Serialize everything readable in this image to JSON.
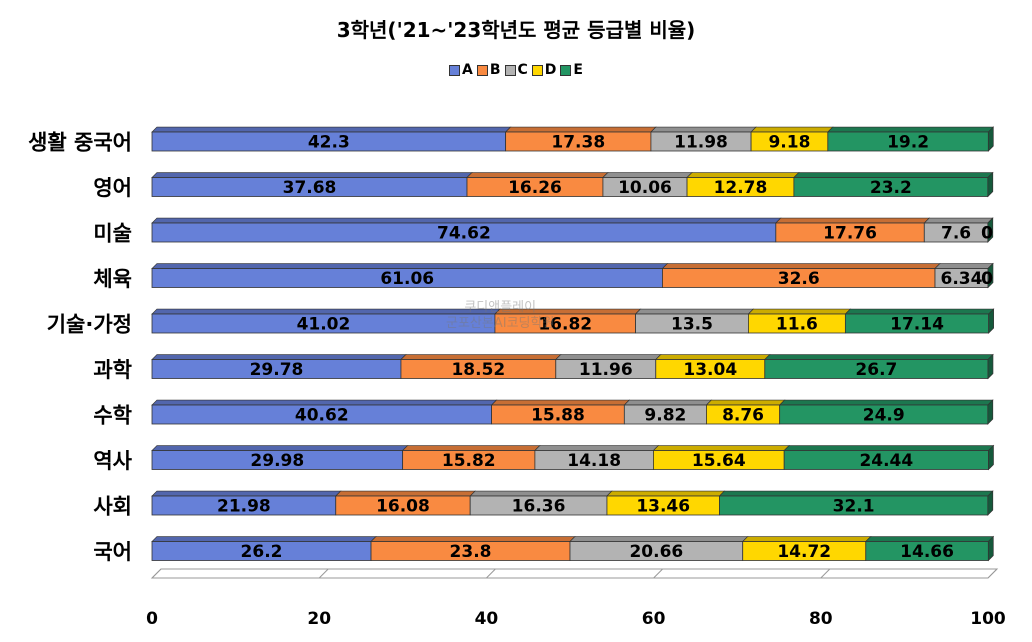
{
  "chart_data": {
    "type": "bar",
    "orientation": "horizontal",
    "stacked": true,
    "title": "3학년('21~'23학년도 평균 등급별 비율)",
    "categories": [
      "생활 중국어",
      "영어",
      "미술",
      "체육",
      "기술·가정",
      "과학",
      "수학",
      "역사",
      "사회",
      "국어"
    ],
    "series": [
      {
        "name": "A",
        "color": "#6680d8",
        "values": [
          42.3,
          37.68,
          74.62,
          61.06,
          41.02,
          29.78,
          40.62,
          29.98,
          21.98,
          26.2
        ]
      },
      {
        "name": "B",
        "color": "#f98a41",
        "values": [
          17.38,
          16.26,
          17.76,
          32.6,
          16.82,
          18.52,
          15.88,
          15.82,
          16.08,
          23.8
        ]
      },
      {
        "name": "C",
        "color": "#b3b3b3",
        "values": [
          11.98,
          10.06,
          7.6,
          6.34,
          13.5,
          11.96,
          9.82,
          14.18,
          16.36,
          20.66
        ]
      },
      {
        "name": "D",
        "color": "#ffd700",
        "values": [
          9.18,
          12.78,
          0,
          0,
          11.6,
          13.04,
          8.76,
          15.64,
          13.46,
          14.72
        ]
      },
      {
        "name": "E",
        "color": "#239563",
        "values": [
          19.2,
          23.2,
          0,
          0,
          17.14,
          26.7,
          24.9,
          24.44,
          32.1,
          14.66
        ]
      }
    ],
    "xlim": [
      0,
      100
    ],
    "xticks": [
      0,
      20,
      40,
      60,
      80,
      100
    ],
    "legend": "top"
  },
  "watermark": [
    "쿠디앤플레이",
    "군포산본AI코딩학원"
  ]
}
